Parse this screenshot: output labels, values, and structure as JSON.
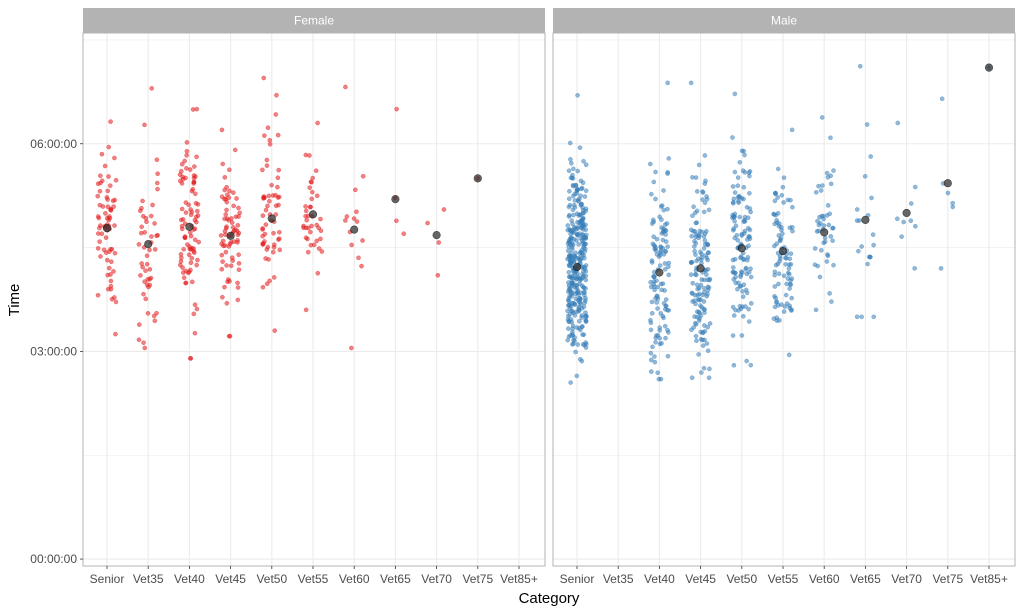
{
  "chart_data": {
    "type": "scatter",
    "subtype": "jitter-strip-by-facet",
    "xlabel": "Category",
    "ylabel": "Time",
    "categories": [
      "Senior",
      "Vet35",
      "Vet40",
      "Vet45",
      "Vet50",
      "Vet55",
      "Vet60",
      "Vet65",
      "Vet70",
      "Vet75",
      "Vet85+"
    ],
    "y_ticks": [
      "00:00:00",
      "03:00:00",
      "06:00:00"
    ],
    "y_tick_values_hours": [
      0,
      3,
      6
    ],
    "ylim_hours": [
      -0.1,
      7.6
    ],
    "grid": true,
    "theme": "light",
    "colors": {
      "Female": "#e41a1c",
      "Male": "#377eb8",
      "mean": "#333333",
      "strip": "#b3b3b3",
      "grid": "#ebebeb",
      "panel_border": "#b3b3b3"
    },
    "facets": [
      {
        "name": "Female",
        "counts": {
          "Senior": 70,
          "Vet35": 50,
          "Vet40": 90,
          "Vet45": 75,
          "Vet50": 60,
          "Vet55": 40,
          "Vet60": 14,
          "Vet65": 4,
          "Vet70": 4,
          "Vet75": 1,
          "Vet85+": 0
        },
        "means_hours": {
          "Senior": 4.78,
          "Vet35": 4.55,
          "Vet40": 4.8,
          "Vet45": 4.67,
          "Vet50": 4.92,
          "Vet55": 4.98,
          "Vet60": 4.76,
          "Vet65": 5.2,
          "Vet70": 4.68,
          "Vet75": 5.5
        },
        "ranges_hours": {
          "Senior": [
            3.25,
            6.32
          ],
          "Vet35": [
            3.05,
            6.8
          ],
          "Vet40": [
            2.9,
            6.5
          ],
          "Vet45": [
            3.22,
            6.2
          ],
          "Vet50": [
            3.3,
            6.95
          ],
          "Vet55": [
            3.6,
            6.3
          ],
          "Vet60": [
            3.05,
            6.82
          ],
          "Vet65": [
            4.7,
            6.5
          ],
          "Vet70": [
            4.1,
            5.05
          ],
          "Vet75": [
            5.5,
            5.5
          ]
        }
      },
      {
        "name": "Male",
        "counts": {
          "Senior": 330,
          "Vet35": 0,
          "Vet40": 120,
          "Vet45": 140,
          "Vet50": 120,
          "Vet55": 90,
          "Vet60": 45,
          "Vet65": 20,
          "Vet70": 9,
          "Vet75": 6,
          "Vet85+": 1
        },
        "means_hours": {
          "Senior": 4.22,
          "Vet40": 4.14,
          "Vet45": 4.2,
          "Vet50": 4.49,
          "Vet55": 4.45,
          "Vet60": 4.72,
          "Vet65": 4.9,
          "Vet70": 5.0,
          "Vet75": 5.43,
          "Vet85+": 7.1
        },
        "ranges_hours": {
          "Senior": [
            2.55,
            6.7
          ],
          "Vet40": [
            2.6,
            6.88
          ],
          "Vet45": [
            2.62,
            6.88
          ],
          "Vet50": [
            2.8,
            6.72
          ],
          "Vet55": [
            2.95,
            6.2
          ],
          "Vet60": [
            3.6,
            6.38
          ],
          "Vet65": [
            3.5,
            7.12
          ],
          "Vet70": [
            4.2,
            6.3
          ],
          "Vet75": [
            4.2,
            6.65
          ],
          "Vet85+": [
            7.1,
            7.1
          ]
        }
      }
    ]
  }
}
